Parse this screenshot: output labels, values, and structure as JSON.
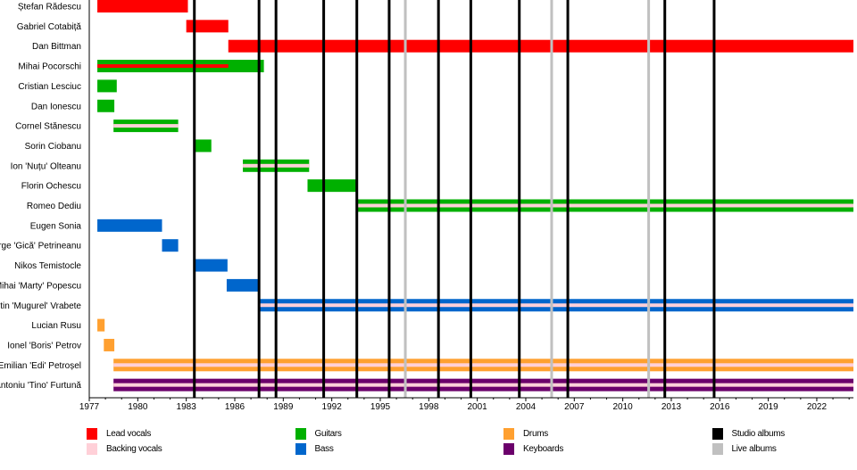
{
  "chart_data": {
    "type": "timeline",
    "xlim": [
      1977,
      2024.3
    ],
    "x_ticks": [
      1977,
      1980,
      1983,
      1986,
      1989,
      1992,
      1995,
      1998,
      2001,
      2004,
      2007,
      2010,
      2013,
      2016,
      2019,
      2022
    ],
    "colors": {
      "Lead vocals": "#ff0000",
      "Backing vocals": "#ffd0d8",
      "Guitars": "#00b000",
      "Bass": "#0066cc",
      "Drums": "#ffa030",
      "Keyboards": "#6b006b",
      "Studio albums": "#000000",
      "Live albums": "#c0c0c0"
    },
    "legend": [
      {
        "label": "Lead vocals",
        "key": "Lead vocals"
      },
      {
        "label": "Backing vocals",
        "key": "Backing vocals"
      },
      {
        "label": "Guitars",
        "key": "Guitars"
      },
      {
        "label": "Bass",
        "key": "Bass"
      },
      {
        "label": "Drums",
        "key": "Drums"
      },
      {
        "label": "Keyboards",
        "key": "Keyboards"
      },
      {
        "label": "Studio albums",
        "key": "Studio albums"
      },
      {
        "label": "Live albums",
        "key": "Live albums"
      }
    ],
    "members": [
      {
        "name": "Ștefan Rădescu",
        "role": "Lead vocals",
        "start": 1977.5,
        "end": 1983.1
      },
      {
        "name": "Gabriel Cotabiță",
        "role": "Lead vocals",
        "start": 1983.0,
        "end": 1985.6
      },
      {
        "name": "Dan Bittman",
        "role": "Lead vocals",
        "start": 1985.6,
        "end": 2024.3
      },
      {
        "name": "Mihai Pocorschi",
        "role": "Guitars",
        "start": 1977.5,
        "end": 1987.8,
        "stripe": "Lead vocals",
        "stripe_end": 1985.6
      },
      {
        "name": "Cristian Lesciuc",
        "role": "Guitars",
        "start": 1977.5,
        "end": 1978.7
      },
      {
        "name": "Dan Ionescu",
        "role": "Guitars",
        "start": 1977.5,
        "end": 1978.55
      },
      {
        "name": "Cornel Stănescu",
        "role": "Guitars",
        "start": 1978.5,
        "end": 1982.5,
        "stripe": "Backing vocals"
      },
      {
        "name": "Sorin Ciobanu",
        "role": "Guitars",
        "start": 1983.5,
        "end": 1984.55
      },
      {
        "name": "Ion 'Nuțu' Olteanu",
        "role": "Guitars",
        "start": 1986.5,
        "end": 1990.6,
        "stripe": "Backing vocals"
      },
      {
        "name": "Florin Ochescu",
        "role": "Guitars",
        "start": 1990.5,
        "end": 1993.55
      },
      {
        "name": "Romeo Dediu",
        "role": "Guitars",
        "start": 1993.55,
        "end": 2024.3,
        "stripe": "Backing vocals"
      },
      {
        "name": "Eugen Sonia",
        "role": "Bass",
        "start": 1977.5,
        "end": 1981.5
      },
      {
        "name": "George 'Gică' Petrineanu",
        "role": "Bass",
        "start": 1981.5,
        "end": 1982.5
      },
      {
        "name": "Nikos Temistocle",
        "role": "Bass",
        "start": 1983.5,
        "end": 1985.55
      },
      {
        "name": "Mihai 'Marty' Popescu",
        "role": "Bass",
        "start": 1985.5,
        "end": 1987.55
      },
      {
        "name": "Valentin 'Mugurel' Vrabete",
        "role": "Bass",
        "start": 1987.5,
        "end": 2024.3,
        "stripe": "Backing vocals"
      },
      {
        "name": "Lucian Rusu",
        "role": "Drums",
        "start": 1977.5,
        "end": 1977.95
      },
      {
        "name": "Ionel 'Boris' Petrov",
        "role": "Drums",
        "start": 1977.9,
        "end": 1978.55
      },
      {
        "name": "Emilian 'Edi' Petroșel",
        "role": "Drums",
        "start": 1978.5,
        "end": 2024.3,
        "stripe": "Backing vocals"
      },
      {
        "name": "Antoniu 'Tino' Furtună",
        "role": "Keyboards",
        "start": 1978.5,
        "end": 2024.3,
        "stripe": "Backing vocals"
      }
    ],
    "studio_albums": [
      1983.5,
      1987.5,
      1988.55,
      1991.5,
      1993.55,
      1995.55,
      1998.6,
      2000.6,
      2003.6,
      2006.6,
      2012.6,
      2015.65
    ],
    "live_albums": [
      1996.55,
      2005.6,
      2011.6
    ]
  }
}
